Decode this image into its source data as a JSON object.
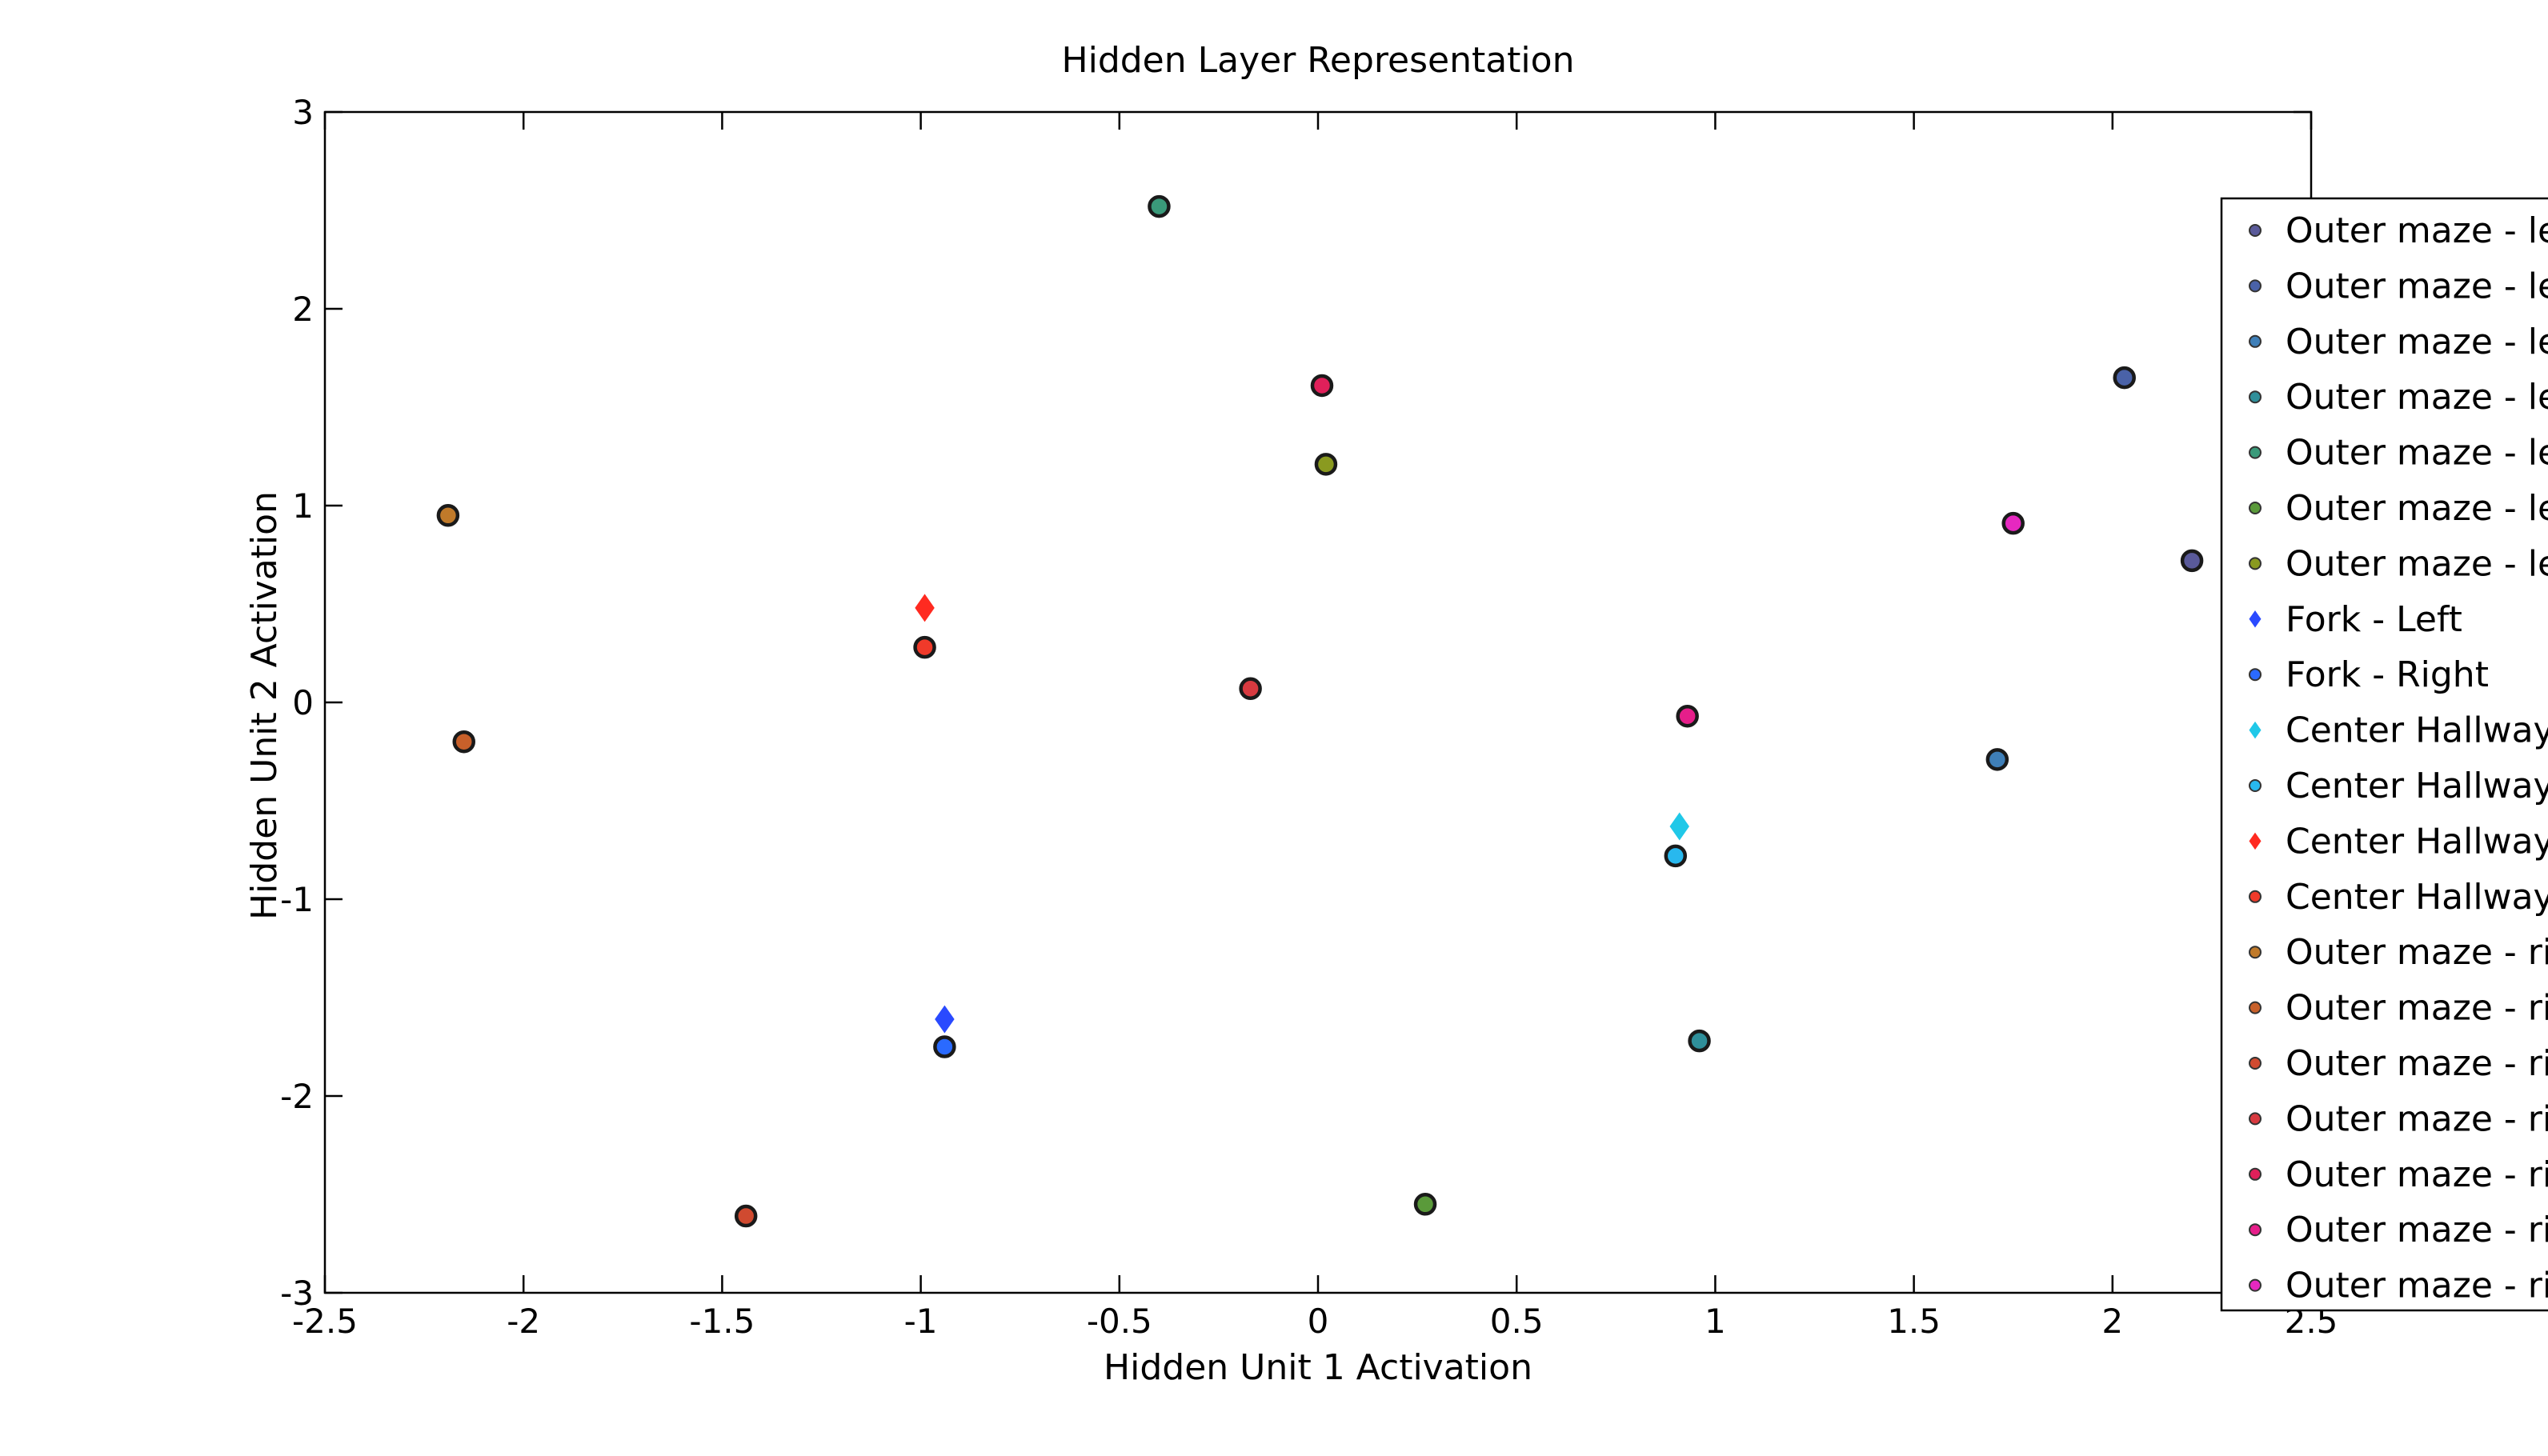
{
  "chart_data": {
    "type": "scatter",
    "title": "Hidden Layer Representation",
    "xlabel": "Hidden Unit 1 Activation",
    "ylabel": "Hidden Unit 2 Activation",
    "xlim": [
      -2.5,
      2.5
    ],
    "ylim": [
      -3,
      3
    ],
    "xticks": [
      -2.5,
      -2,
      -1.5,
      -1,
      -0.5,
      0,
      0.5,
      1,
      1.5,
      2,
      2.5
    ],
    "xtick_labels": [
      "-2.5",
      "-2",
      "-1.5",
      "-1",
      "-0.5",
      "0",
      "0.5",
      "1",
      "1.5",
      "2",
      "2.5"
    ],
    "yticks": [
      -3,
      -2,
      -1,
      0,
      1,
      2,
      3
    ],
    "ytick_labels": [
      "-3",
      "-2",
      "-1",
      "0",
      "1",
      "2",
      "3"
    ],
    "grid": false,
    "legend_position": "right",
    "series": [
      {
        "name": "Outer maze - lef",
        "color": "#5a5a9a",
        "marker": "circle",
        "x": [
          2.2
        ],
        "y": [
          0.72
        ]
      },
      {
        "name": "Outer maze - lef",
        "color": "#4a62a8",
        "marker": "circle",
        "x": [
          2.03
        ],
        "y": [
          1.65
        ]
      },
      {
        "name": "Outer maze - lef",
        "color": "#3f7fb8",
        "marker": "circle",
        "x": [
          1.71
        ],
        "y": [
          -0.29
        ]
      },
      {
        "name": "Outer maze - lef",
        "color": "#2f8f9a",
        "marker": "circle",
        "x": [
          0.96
        ],
        "y": [
          -1.72
        ]
      },
      {
        "name": "Outer maze - lef",
        "color": "#3a9a7a",
        "marker": "circle",
        "x": [
          -0.4
        ],
        "y": [
          2.52
        ]
      },
      {
        "name": "Outer maze - lef",
        "color": "#5a9a3a",
        "marker": "circle",
        "x": [
          0.27
        ],
        "y": [
          -2.55
        ]
      },
      {
        "name": "Outer maze - lef",
        "color": "#8a9a20",
        "marker": "circle",
        "x": [
          0.02
        ],
        "y": [
          1.21
        ]
      },
      {
        "name": "Fork - Left",
        "color": "#2a4aff",
        "marker": "diamond",
        "x": [
          -0.94
        ],
        "y": [
          -1.61
        ]
      },
      {
        "name": "Fork - Right",
        "color": "#2a6aff",
        "marker": "circle",
        "x": [
          -0.94
        ],
        "y": [
          -1.75
        ]
      },
      {
        "name": "Center Hallway",
        "color": "#20c8e8",
        "marker": "diamond",
        "x": [
          0.91
        ],
        "y": [
          -0.63
        ]
      },
      {
        "name": "Center Hallway",
        "color": "#28b8ee",
        "marker": "circle",
        "x": [
          0.9
        ],
        "y": [
          -0.78
        ]
      },
      {
        "name": "Center Hallway",
        "color": "#ff2a20",
        "marker": "diamond",
        "x": [
          -0.99
        ],
        "y": [
          0.48
        ]
      },
      {
        "name": "Center Hallway",
        "color": "#f03a2a",
        "marker": "circle",
        "x": [
          -0.99
        ],
        "y": [
          0.28
        ]
      },
      {
        "name": "Outer maze - rig",
        "color": "#c07a2a",
        "marker": "circle",
        "x": [
          -2.19
        ],
        "y": [
          0.95
        ]
      },
      {
        "name": "Outer maze - rig",
        "color": "#c8602a",
        "marker": "circle",
        "x": [
          -2.15
        ],
        "y": [
          -0.2
        ]
      },
      {
        "name": "Outer maze - rig",
        "color": "#d04a30",
        "marker": "circle",
        "x": [
          -1.44
        ],
        "y": [
          -2.61
        ]
      },
      {
        "name": "Outer maze - rig",
        "color": "#d83a40",
        "marker": "circle",
        "x": [
          -0.17
        ],
        "y": [
          0.07
        ]
      },
      {
        "name": "Outer maze - rig",
        "color": "#e0205a",
        "marker": "circle",
        "x": [
          0.01
        ],
        "y": [
          1.61
        ]
      },
      {
        "name": "Outer maze - rig",
        "color": "#e61e8a",
        "marker": "circle",
        "x": [
          0.93
        ],
        "y": [
          -0.07
        ]
      },
      {
        "name": "Outer maze - rig",
        "color": "#e628c0",
        "marker": "circle",
        "x": [
          1.75
        ],
        "y": [
          0.91
        ]
      }
    ]
  }
}
